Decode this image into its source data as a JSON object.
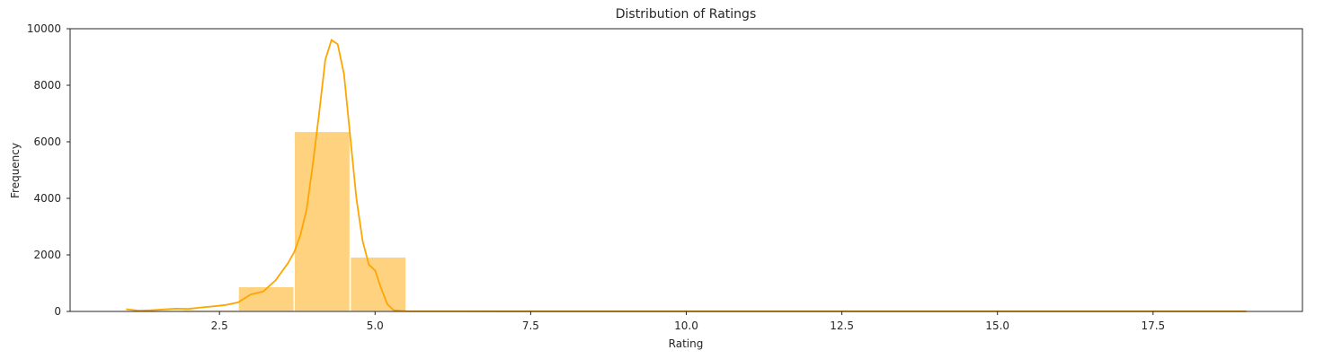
{
  "chart_data": {
    "type": "bar",
    "title": "Distribution of Ratings",
    "xlabel": "Rating",
    "ylabel": "Frequency",
    "xlim": [
      0.1,
      19.9
    ],
    "ylim": [
      0,
      10000
    ],
    "xticks": [
      "2.5",
      "5.0",
      "7.5",
      "10.0",
      "12.5",
      "15.0",
      "17.5"
    ],
    "yticks": [
      "0",
      "2000",
      "4000",
      "6000",
      "8000",
      "10000"
    ],
    "grid": false,
    "bar_color": "#ffd280",
    "bar_edge_color": "#ffffff",
    "kde_color": "#ffa500",
    "bins": [
      {
        "x0": 1.0,
        "x1": 1.9,
        "count": 10
      },
      {
        "x0": 1.9,
        "x1": 2.8,
        "count": 60
      },
      {
        "x0": 2.8,
        "x1": 3.7,
        "count": 880
      },
      {
        "x0": 3.7,
        "x1": 4.6,
        "count": 6370
      },
      {
        "x0": 4.6,
        "x1": 5.5,
        "count": 1930
      },
      {
        "x0": 5.5,
        "x1": 6.4,
        "count": 5
      },
      {
        "x0": 6.4,
        "x1": 7.3,
        "count": 5
      },
      {
        "x0": 7.3,
        "x1": 8.2,
        "count": 5
      },
      {
        "x0": 8.2,
        "x1": 9.1,
        "count": 5
      },
      {
        "x0": 9.1,
        "x1": 10.0,
        "count": 5
      },
      {
        "x0": 10.0,
        "x1": 10.9,
        "count": 5
      },
      {
        "x0": 10.9,
        "x1": 11.8,
        "count": 5
      },
      {
        "x0": 11.8,
        "x1": 12.7,
        "count": 5
      },
      {
        "x0": 12.7,
        "x1": 13.6,
        "count": 5
      },
      {
        "x0": 13.6,
        "x1": 14.5,
        "count": 5
      },
      {
        "x0": 14.5,
        "x1": 15.4,
        "count": 5
      },
      {
        "x0": 15.4,
        "x1": 16.3,
        "count": 5
      },
      {
        "x0": 16.3,
        "x1": 17.2,
        "count": 5
      },
      {
        "x0": 17.2,
        "x1": 18.1,
        "count": 5
      },
      {
        "x0": 18.1,
        "x1": 19.0,
        "count": 5
      }
    ],
    "kde": [
      [
        1.0,
        80
      ],
      [
        1.2,
        30
      ],
      [
        1.4,
        40
      ],
      [
        1.6,
        70
      ],
      [
        1.8,
        100
      ],
      [
        2.0,
        90
      ],
      [
        2.2,
        140
      ],
      [
        2.4,
        180
      ],
      [
        2.6,
        230
      ],
      [
        2.8,
        320
      ],
      [
        3.0,
        600
      ],
      [
        3.2,
        700
      ],
      [
        3.4,
        1100
      ],
      [
        3.6,
        1700
      ],
      [
        3.7,
        2100
      ],
      [
        3.8,
        2700
      ],
      [
        3.9,
        3600
      ],
      [
        4.0,
        5200
      ],
      [
        4.1,
        7000
      ],
      [
        4.2,
        8900
      ],
      [
        4.3,
        9600
      ],
      [
        4.4,
        9450
      ],
      [
        4.5,
        8400
      ],
      [
        4.6,
        6200
      ],
      [
        4.7,
        4000
      ],
      [
        4.8,
        2500
      ],
      [
        4.9,
        1650
      ],
      [
        5.0,
        1450
      ],
      [
        5.1,
        800
      ],
      [
        5.2,
        250
      ],
      [
        5.3,
        40
      ],
      [
        5.5,
        10
      ],
      [
        7.0,
        5
      ],
      [
        10.0,
        5
      ],
      [
        13.0,
        5
      ],
      [
        16.0,
        5
      ],
      [
        19.0,
        5
      ]
    ]
  }
}
